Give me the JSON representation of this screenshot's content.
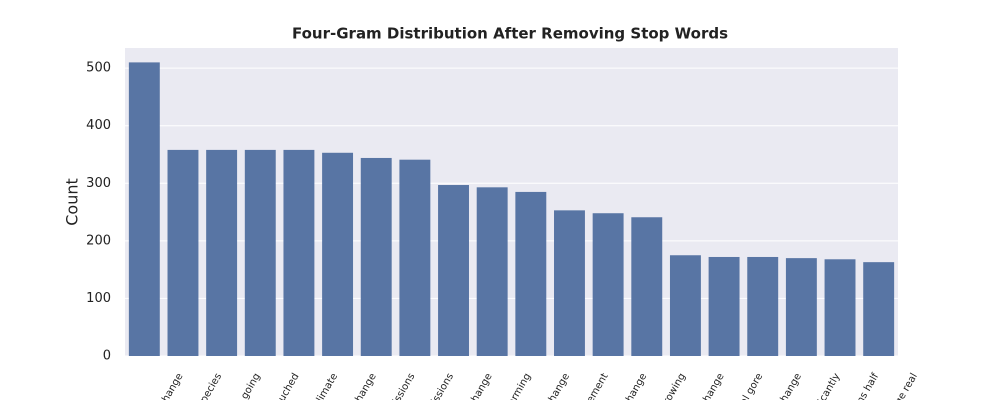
{
  "chart_data": {
    "type": "bar",
    "title": "Four-Gram Distribution After Removing Stop Words",
    "y_label": "Count",
    "categories": [
      "change",
      "pecies",
      "t going",
      "ouched",
      "climate",
      "change",
      "issions",
      "issions",
      "change",
      "arming",
      "change",
      "ement",
      "change",
      "rowing",
      "change",
      "al gore",
      "change",
      "ficantly",
      "ns half",
      "ge real"
    ],
    "values": [
      510,
      358,
      358,
      358,
      358,
      353,
      344,
      341,
      297,
      293,
      285,
      253,
      248,
      241,
      175,
      172,
      172,
      170,
      168,
      163
    ],
    "color": "#5875a4",
    "ylim": [
      0,
      535
    ],
    "yticks": [
      0,
      100,
      200,
      300,
      400,
      500
    ],
    "grid": true
  }
}
